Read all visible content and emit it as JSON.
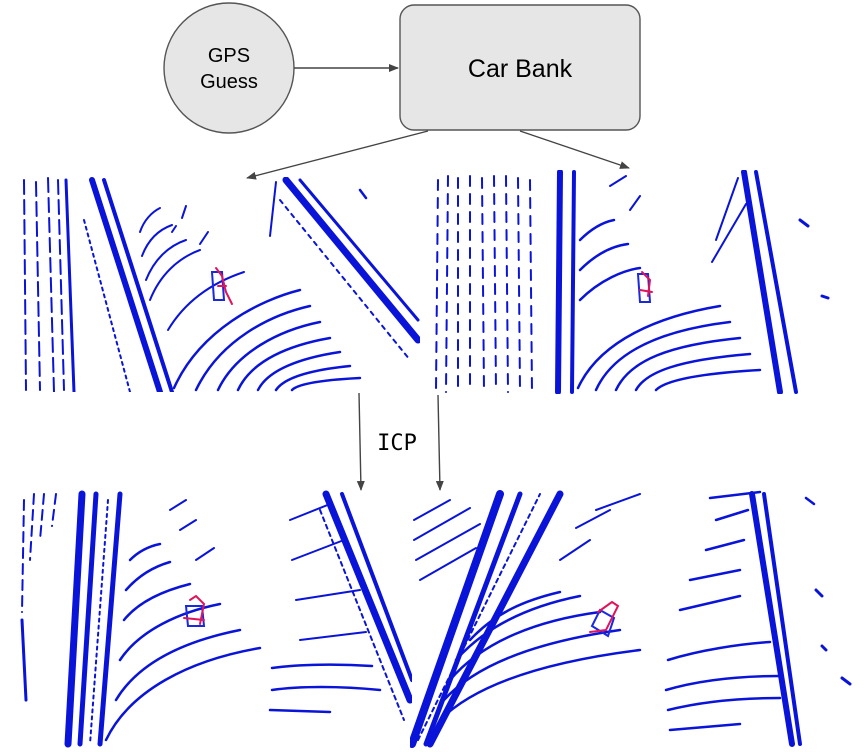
{
  "nodes": {
    "gps": {
      "line1": "GPS",
      "line2": "Guess"
    },
    "car_bank": {
      "label": "Car Bank"
    }
  },
  "edge_labels": {
    "icp": "ICP"
  },
  "colors": {
    "scan_points": "#0a14d8",
    "car_points_red": "#e0145a",
    "node_fill": "#e6e6e6",
    "node_stroke": "#555555",
    "arrow": "#444444"
  }
}
